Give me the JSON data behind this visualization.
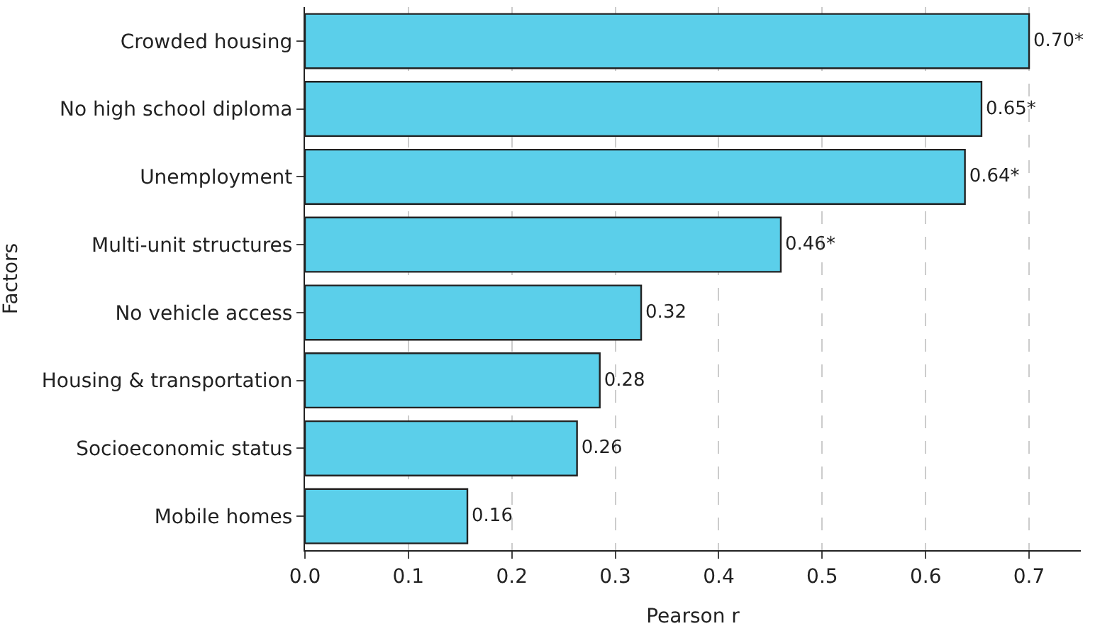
{
  "chart_data": {
    "type": "bar",
    "orientation": "horizontal",
    "xlabel": "Pearson r",
    "ylabel": "Factors",
    "categories": [
      "Crowded housing",
      "No high school diploma",
      "Unemployment",
      "Multi-unit structures",
      "No vehicle access",
      "Housing & transportation",
      "Socioeconomic status",
      "Mobile homes"
    ],
    "values": [
      0.7,
      0.654,
      0.638,
      0.46,
      0.325,
      0.285,
      0.263,
      0.157
    ],
    "value_labels": [
      "0.70*",
      "0.65*",
      "0.64*",
      "0.46*",
      "0.32",
      "0.28",
      "0.26",
      "0.16"
    ],
    "color": "#5bcfea",
    "xlim": [
      0,
      0.75
    ],
    "xticks": [
      {
        "value": 0,
        "label": "0.0"
      },
      0.1,
      0.2,
      0.3,
      0.4,
      0.5,
      0.6,
      0.7
    ],
    "grid": "x"
  }
}
